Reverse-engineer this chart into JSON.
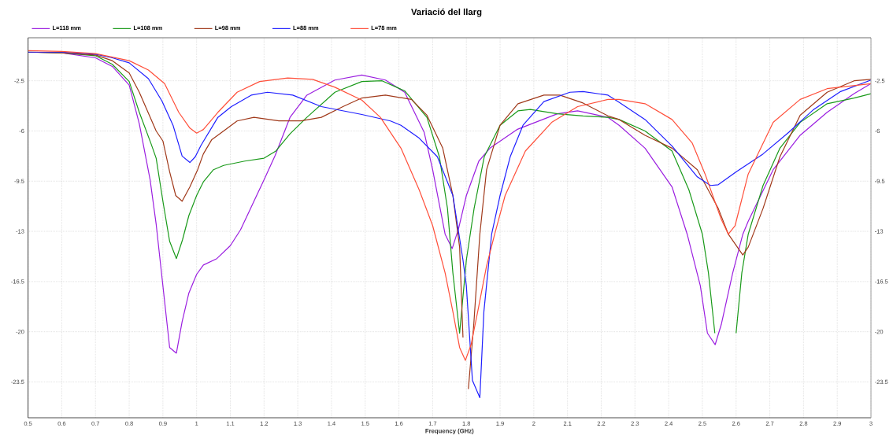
{
  "chart_data": {
    "type": "line",
    "title": "Variació del llarg",
    "xlabel": "Frequency (GHz)",
    "xlim": [
      0.5,
      3
    ],
    "ylim": [
      -26,
      0.5
    ],
    "y2lim": [
      -26,
      0.5
    ],
    "xticks": [
      0.5,
      0.6,
      0.7,
      0.8,
      0.9,
      1,
      1.1,
      1.2,
      1.3,
      1.4,
      1.5,
      1.6,
      1.7,
      1.8,
      1.9,
      2,
      2.1,
      2.2,
      2.3,
      2.4,
      2.5,
      2.6,
      2.7,
      2.8,
      2.9,
      3
    ],
    "yticks": [
      -2.5,
      -6,
      -9.5,
      -13,
      -16.5,
      -20,
      -23.5
    ],
    "y2ticks": [
      -2.5,
      -6,
      -9.5,
      -13,
      -16.5,
      -20,
      -23.5
    ],
    "grid": true,
    "legend": "top left",
    "marker": "none",
    "line_style": "solid",
    "series": [
      {
        "name": "L=118 mm",
        "color": "#9b1fe0",
        "x": [
          0.5,
          0.6,
          0.7,
          0.75,
          0.8,
          0.83,
          0.862,
          0.88,
          0.9,
          0.92,
          0.94,
          0.957,
          0.977,
          1.0,
          1.02,
          1.06,
          1.1,
          1.13,
          1.16,
          1.2,
          1.233,
          1.277,
          1.327,
          1.41,
          1.49,
          1.56,
          1.617,
          1.675,
          1.7,
          1.737,
          1.758,
          1.777,
          1.8,
          1.837,
          1.87,
          1.95,
          2.07,
          2.13,
          2.22,
          2.253,
          2.33,
          2.41,
          2.455,
          2.494,
          2.515,
          2.538,
          2.556,
          2.59,
          2.62,
          2.636,
          2.71,
          2.79,
          2.87,
          2.95,
          3.0
        ],
        "values": [
          -0.5,
          -0.55,
          -0.9,
          -1.5,
          -2.8,
          -5.5,
          -9.4,
          -12.5,
          -16.8,
          -21.1,
          -21.5,
          -19.3,
          -17.3,
          -16.0,
          -15.35,
          -14.9,
          -14.0,
          -12.9,
          -11.4,
          -9.4,
          -7.7,
          -5.05,
          -3.5,
          -2.45,
          -2.1,
          -2.45,
          -3.3,
          -6.1,
          -8.7,
          -13.2,
          -14.2,
          -12.8,
          -10.5,
          -8.1,
          -7.2,
          -5.9,
          -4.8,
          -4.6,
          -5.05,
          -5.6,
          -7.2,
          -9.9,
          -13.2,
          -16.8,
          -20.1,
          -20.9,
          -19.5,
          -15.9,
          -13.2,
          -12.3,
          -8.7,
          -6.3,
          -4.7,
          -3.4,
          -2.7
        ]
      },
      {
        "name": "L=108 mm",
        "color": "#1a9a1a",
        "x": [
          0.5,
          0.6,
          0.7,
          0.75,
          0.8,
          0.83,
          0.865,
          0.88,
          0.9,
          0.92,
          0.94,
          0.958,
          0.977,
          1.0,
          1.02,
          1.05,
          1.08,
          1.143,
          1.2,
          1.235,
          1.277,
          1.327,
          1.41,
          1.49,
          1.55,
          1.617,
          1.683,
          1.72,
          1.744,
          1.76,
          1.78,
          1.8,
          1.823,
          1.853,
          1.9,
          1.953,
          1.99,
          2.07,
          2.146,
          2.22,
          2.253,
          2.33,
          2.41,
          2.46,
          2.5,
          2.518,
          2.537,
          2.556,
          2.578,
          2.6,
          2.617,
          2.636,
          2.68,
          2.73,
          2.79,
          2.87,
          2.95,
          3.0
        ],
        "values": [
          -0.5,
          -0.55,
          -0.75,
          -1.35,
          -2.55,
          -4.7,
          -6.9,
          -7.9,
          -10.9,
          -13.7,
          -14.9,
          -13.6,
          -11.9,
          -10.5,
          -9.55,
          -8.7,
          -8.4,
          -8.1,
          -7.9,
          -7.4,
          -6.2,
          -5.05,
          -3.3,
          -2.55,
          -2.5,
          -3.2,
          -5.05,
          -7.8,
          -11.4,
          -15.9,
          -20.1,
          -15.0,
          -11.4,
          -7.8,
          -5.6,
          -4.6,
          -4.5,
          -4.8,
          -4.95,
          -5.05,
          -5.2,
          -6.0,
          -7.4,
          -10.1,
          -13.2,
          -15.9,
          -20.1,
          null,
          null,
          -20.1,
          -15.9,
          -13.2,
          -9.8,
          -7.2,
          -5.4,
          -4.1,
          -3.7,
          -3.4
        ]
      },
      {
        "name": "L=98 mm",
        "color": "#a0391a",
        "x": [
          0.5,
          0.6,
          0.7,
          0.75,
          0.8,
          0.83,
          0.88,
          0.9,
          0.92,
          0.938,
          0.957,
          0.98,
          1.003,
          1.02,
          1.045,
          1.08,
          1.12,
          1.17,
          1.244,
          1.31,
          1.37,
          1.434,
          1.49,
          1.56,
          1.637,
          1.683,
          1.73,
          1.76,
          1.78,
          1.79,
          1.8,
          1.806,
          1.822,
          1.84,
          1.86,
          1.9,
          1.953,
          2.03,
          2.077,
          2.146,
          2.22,
          2.253,
          2.33,
          2.41,
          2.485,
          2.547,
          2.577,
          2.62,
          2.636,
          2.68,
          2.73,
          2.79,
          2.87,
          2.95,
          3.0
        ],
        "values": [
          -0.5,
          -0.55,
          -0.7,
          -1.1,
          -1.95,
          -3.3,
          -6.0,
          -6.7,
          -8.85,
          -10.5,
          -10.9,
          -9.9,
          -8.7,
          -7.6,
          -6.6,
          -6.0,
          -5.3,
          -5.05,
          -5.3,
          -5.3,
          -5.05,
          -4.3,
          -3.7,
          -3.5,
          -3.8,
          -4.9,
          -7.2,
          -10.5,
          -14.1,
          -20.4,
          null,
          -24.0,
          -19.5,
          -13.2,
          -8.7,
          -5.6,
          -4.1,
          -3.5,
          -3.5,
          -4.05,
          -4.95,
          -5.2,
          -6.3,
          -7.2,
          -8.7,
          -11.4,
          -13.2,
          -14.65,
          -14.1,
          -11.4,
          -7.8,
          -4.9,
          -3.3,
          -2.5,
          -2.4
        ]
      },
      {
        "name": "L=88 mm",
        "color": "#1f1fff",
        "x": [
          0.5,
          0.6,
          0.7,
          0.75,
          0.8,
          0.857,
          0.897,
          0.93,
          0.957,
          0.98,
          0.996,
          1.013,
          1.063,
          1.103,
          1.162,
          1.21,
          1.285,
          1.37,
          1.49,
          1.575,
          1.606,
          1.66,
          1.714,
          1.76,
          1.79,
          1.8,
          1.818,
          1.84,
          1.852,
          1.875,
          1.9,
          1.93,
          1.968,
          2.03,
          2.107,
          2.146,
          2.22,
          2.253,
          2.33,
          2.41,
          2.485,
          2.524,
          2.547,
          2.6,
          2.68,
          2.756,
          2.83,
          2.91,
          3.0
        ],
        "values": [
          -0.5,
          -0.5,
          -0.65,
          -0.9,
          -1.25,
          -2.35,
          -3.9,
          -5.6,
          -7.75,
          -8.2,
          -7.8,
          -7.0,
          -5.05,
          -4.3,
          -3.5,
          -3.3,
          -3.5,
          -4.3,
          -4.85,
          -5.3,
          -5.6,
          -6.5,
          -7.8,
          -10.5,
          -15.0,
          -16.8,
          -23.4,
          -24.6,
          -18.6,
          -13.2,
          -10.5,
          -7.8,
          -5.6,
          -3.95,
          -3.3,
          -3.25,
          -3.5,
          -4.0,
          -5.2,
          -7.05,
          -9.2,
          -9.8,
          -9.75,
          -8.85,
          -7.6,
          -6.1,
          -4.5,
          -3.25,
          -2.45
        ]
      },
      {
        "name": "L=78 mm",
        "color": "#ff4f3a",
        "x": [
          0.5,
          0.6,
          0.7,
          0.75,
          0.8,
          0.857,
          0.905,
          0.947,
          0.98,
          1.0,
          1.02,
          1.063,
          1.12,
          1.187,
          1.27,
          1.344,
          1.41,
          1.49,
          1.545,
          1.606,
          1.66,
          1.7,
          1.737,
          1.76,
          1.78,
          1.797,
          1.814,
          1.837,
          1.86,
          1.884,
          1.915,
          1.975,
          2.053,
          2.13,
          2.22,
          2.253,
          2.33,
          2.41,
          2.47,
          2.508,
          2.555,
          2.577,
          2.597,
          2.636,
          2.71,
          2.79,
          2.87,
          3.0
        ],
        "values": [
          -0.4,
          -0.45,
          -0.6,
          -0.85,
          -1.1,
          -1.75,
          -2.7,
          -4.7,
          -5.8,
          -6.15,
          -5.9,
          -4.7,
          -3.3,
          -2.55,
          -2.3,
          -2.4,
          -2.95,
          -3.85,
          -5.05,
          -7.2,
          -10.1,
          -12.6,
          -15.9,
          -18.6,
          -21.1,
          -22.0,
          -20.9,
          -18.2,
          -15.4,
          -13.2,
          -10.5,
          -7.4,
          -5.4,
          -4.3,
          -3.8,
          -3.8,
          -4.1,
          -5.2,
          -6.85,
          -9.0,
          -12.1,
          -13.2,
          -12.6,
          -9.0,
          -5.4,
          -3.8,
          -3.05,
          -2.7
        ]
      }
    ]
  }
}
